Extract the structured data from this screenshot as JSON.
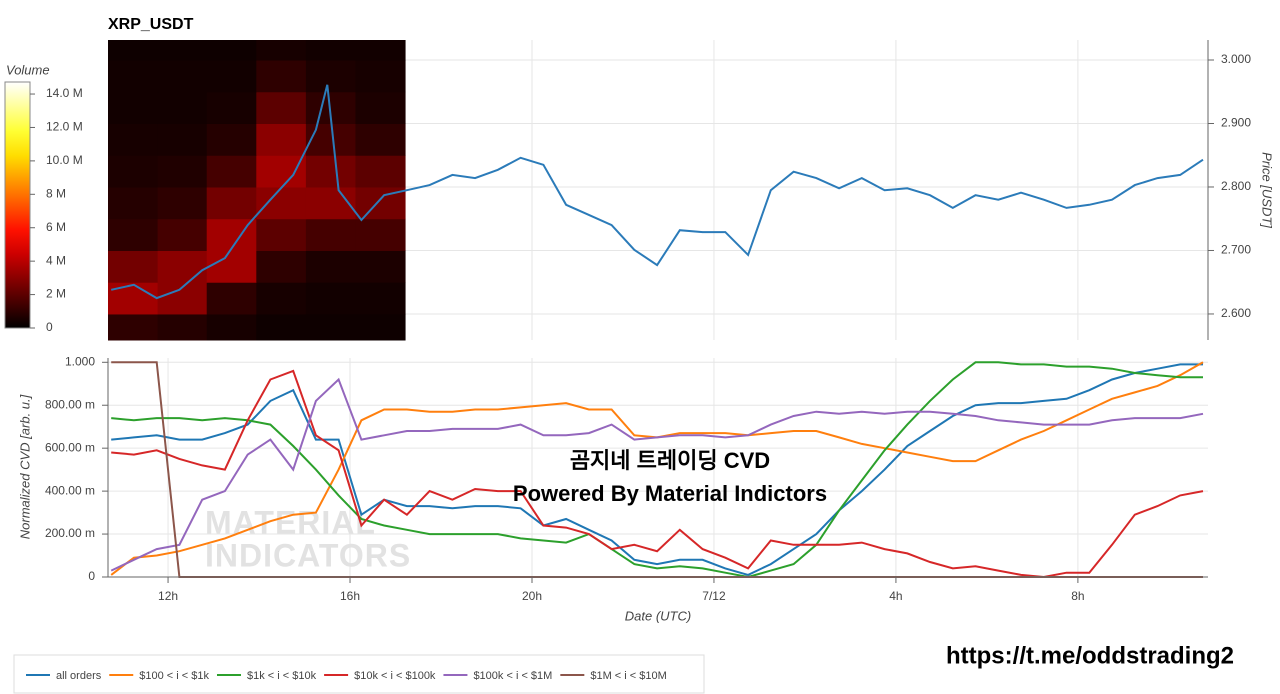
{
  "chart_data": [
    {
      "type": "line",
      "title": "XRP_USDT",
      "y2label": "Price [USDT]",
      "xlim": [
        10.68,
        34.86
      ],
      "x": [
        10.75,
        11.25,
        11.75,
        12.25,
        12.75,
        13.25,
        13.75,
        14.25,
        14.75,
        15.25,
        15.5,
        15.75,
        16.25,
        16.75,
        17.25,
        17.75,
        18.25,
        18.75,
        19.25,
        19.75,
        20.25,
        20.75,
        21.25,
        21.75,
        22.25,
        22.75,
        23.25,
        23.75,
        24.25,
        24.75,
        25.25,
        25.75,
        26.25,
        26.75,
        27.25,
        27.75,
        28.25,
        28.75,
        29.25,
        29.75,
        30.25,
        30.75,
        31.25,
        31.75,
        32.25,
        32.75,
        33.25,
        33.75,
        34.25,
        34.75
      ],
      "series": [
        {
          "color": "#2b7bb9",
          "axis": "y2",
          "values": [
            2.638,
            2.646,
            2.625,
            2.638,
            2.669,
            2.688,
            2.74,
            2.78,
            2.819,
            2.89,
            2.961,
            2.795,
            2.748,
            2.787,
            2.795,
            2.803,
            2.819,
            2.814,
            2.827,
            2.846,
            2.835,
            2.772,
            2.756,
            2.74,
            2.701,
            2.677,
            2.732,
            2.729,
            2.729,
            2.693,
            2.795,
            2.824,
            2.814,
            2.798,
            2.814,
            2.795,
            2.798,
            2.787,
            2.767,
            2.787,
            2.78,
            2.791,
            2.78,
            2.767,
            2.772,
            2.78,
            2.803,
            2.814,
            2.819,
            2.843
          ]
        }
      ],
      "y2lim": [
        2.559,
        3.0315
      ],
      "y2ticks": [
        {
          "value": 2.6,
          "label": "2.600"
        },
        {
          "value": 2.7,
          "label": "2.700"
        },
        {
          "value": 2.8,
          "label": "2.800"
        },
        {
          "value": 2.9,
          "label": "2.900"
        },
        {
          "value": 3.0,
          "label": "3.000"
        }
      ],
      "grid": true,
      "heatmap": {
        "label": "Volume",
        "colormap": "hot",
        "x_edges": [
          10.68,
          11.77,
          12.85,
          13.94,
          15.03,
          16.12,
          17.21
        ],
        "y_edges": [
          2.559,
          2.6,
          2.65,
          2.7,
          2.75,
          2.8,
          2.85,
          2.9,
          2.95,
          3.0,
          3.0315
        ],
        "values": [
          [
            1000000,
            800000,
            500000,
            300000,
            300000,
            300000
          ],
          [
            3500000,
            3000000,
            1000000,
            500000,
            400000,
            400000
          ],
          [
            2500000,
            3000000,
            3500000,
            1000000,
            600000,
            600000
          ],
          [
            1000000,
            1500000,
            3500000,
            2000000,
            1500000,
            1500000
          ],
          [
            800000,
            1000000,
            2500000,
            3000000,
            3000000,
            2500000
          ],
          [
            600000,
            700000,
            1500000,
            3500000,
            2500000,
            2000000
          ],
          [
            500000,
            500000,
            800000,
            3000000,
            1500000,
            1000000
          ],
          [
            400000,
            400000,
            500000,
            2000000,
            1000000,
            600000
          ],
          [
            400000,
            400000,
            400000,
            1000000,
            600000,
            500000
          ],
          [
            300000,
            300000,
            300000,
            500000,
            400000,
            400000
          ]
        ],
        "clim": [
          0,
          14720000
        ],
        "cticks": [
          0,
          {
            "value": 2000000,
            "label": "2 M"
          },
          {
            "value": 4000000,
            "label": "4 M"
          },
          {
            "value": 6000000,
            "label": "6 M"
          },
          {
            "value": 8000000,
            "label": "8 M"
          },
          {
            "value": 10000000,
            "label": "10.0 M"
          },
          {
            "value": 12000000,
            "label": "12.0 M"
          },
          {
            "value": 14000000,
            "label": "14.0 M"
          }
        ]
      }
    },
    {
      "type": "line",
      "xlabel": "Date (UTC)",
      "ylabel": "Normalized CVD [arb. u.]",
      "xlim": [
        10.68,
        34.86
      ],
      "xticks": [
        {
          "value": 12,
          "label": "12h"
        },
        {
          "value": 16,
          "label": "16h"
        },
        {
          "value": 20,
          "label": "20h"
        },
        {
          "value": 24,
          "label": "7/12"
        },
        {
          "value": 28,
          "label": "4h"
        },
        {
          "value": 32,
          "label": "8h"
        }
      ],
      "ylim": [
        0,
        1.02
      ],
      "yticks": [
        0,
        {
          "value": 0.2,
          "label": "200.00 m"
        },
        {
          "value": 0.4,
          "label": "400.00 m"
        },
        {
          "value": 0.6,
          "label": "600.00 m"
        },
        {
          "value": 0.8,
          "label": "800.00 m"
        },
        {
          "value": 1.0,
          "label": "1.000"
        }
      ],
      "grid": true,
      "x": [
        10.75,
        11.25,
        11.75,
        12.25,
        12.75,
        13.25,
        13.75,
        14.25,
        14.75,
        15.25,
        15.75,
        16.25,
        16.75,
        17.25,
        17.75,
        18.25,
        18.75,
        19.25,
        19.75,
        20.25,
        20.75,
        21.25,
        21.75,
        22.25,
        22.75,
        23.25,
        23.75,
        24.25,
        24.75,
        25.25,
        25.75,
        26.25,
        26.75,
        27.25,
        27.75,
        28.25,
        28.75,
        29.25,
        29.75,
        30.25,
        30.75,
        31.25,
        31.75,
        32.25,
        32.75,
        33.25,
        33.75,
        34.25,
        34.75
      ],
      "series": [
        {
          "name": "all orders",
          "color": "#1f77b4",
          "values": [
            0.64,
            0.65,
            0.66,
            0.64,
            0.64,
            0.67,
            0.71,
            0.82,
            0.87,
            0.64,
            0.64,
            0.29,
            0.36,
            0.33,
            0.33,
            0.32,
            0.33,
            0.33,
            0.32,
            0.24,
            0.27,
            0.22,
            0.17,
            0.08,
            0.06,
            0.08,
            0.08,
            0.04,
            0.01,
            0.06,
            0.13,
            0.2,
            0.31,
            0.4,
            0.5,
            0.61,
            0.68,
            0.75,
            0.8,
            0.81,
            0.81,
            0.82,
            0.83,
            0.87,
            0.92,
            0.95,
            0.97,
            0.99,
            0.99
          ]
        },
        {
          "name": "$100 < i < $1k",
          "color": "#ff7f0e",
          "values": [
            0.01,
            0.09,
            0.1,
            0.12,
            0.15,
            0.18,
            0.22,
            0.26,
            0.29,
            0.3,
            0.5,
            0.73,
            0.78,
            0.78,
            0.77,
            0.77,
            0.78,
            0.78,
            0.79,
            0.8,
            0.81,
            0.78,
            0.78,
            0.66,
            0.65,
            0.67,
            0.67,
            0.67,
            0.66,
            0.67,
            0.68,
            0.68,
            0.65,
            0.62,
            0.6,
            0.58,
            0.56,
            0.54,
            0.54,
            0.59,
            0.64,
            0.68,
            0.73,
            0.78,
            0.83,
            0.86,
            0.89,
            0.94,
            1.0
          ]
        },
        {
          "name": "$1k < i < $10k",
          "color": "#2ca02c",
          "values": [
            0.74,
            0.73,
            0.74,
            0.74,
            0.73,
            0.74,
            0.73,
            0.71,
            0.61,
            0.5,
            0.38,
            0.27,
            0.24,
            0.22,
            0.2,
            0.2,
            0.2,
            0.2,
            0.18,
            0.17,
            0.16,
            0.2,
            0.13,
            0.06,
            0.04,
            0.05,
            0.04,
            0.02,
            0.0,
            0.03,
            0.06,
            0.15,
            0.31,
            0.45,
            0.59,
            0.71,
            0.82,
            0.92,
            1.0,
            1.0,
            0.99,
            0.99,
            0.98,
            0.98,
            0.97,
            0.95,
            0.94,
            0.93,
            0.93
          ]
        },
        {
          "name": "$10k < i < $100k",
          "color": "#d62728",
          "values": [
            0.58,
            0.57,
            0.59,
            0.55,
            0.52,
            0.5,
            0.73,
            0.92,
            0.96,
            0.66,
            0.59,
            0.24,
            0.36,
            0.29,
            0.4,
            0.36,
            0.41,
            0.4,
            0.4,
            0.24,
            0.23,
            0.2,
            0.13,
            0.15,
            0.12,
            0.22,
            0.13,
            0.09,
            0.04,
            0.17,
            0.15,
            0.15,
            0.15,
            0.16,
            0.13,
            0.11,
            0.07,
            0.04,
            0.05,
            0.03,
            0.01,
            0.0,
            0.02,
            0.02,
            0.15,
            0.29,
            0.33,
            0.38,
            0.4
          ]
        },
        {
          "name": "$100k < i < $1M",
          "color": "#9467bd",
          "values": [
            0.03,
            0.08,
            0.13,
            0.15,
            0.36,
            0.4,
            0.57,
            0.64,
            0.5,
            0.82,
            0.92,
            0.64,
            0.66,
            0.68,
            0.68,
            0.69,
            0.69,
            0.69,
            0.71,
            0.66,
            0.66,
            0.67,
            0.71,
            0.64,
            0.65,
            0.66,
            0.66,
            0.65,
            0.66,
            0.71,
            0.75,
            0.77,
            0.76,
            0.77,
            0.76,
            0.77,
            0.77,
            0.76,
            0.75,
            0.73,
            0.72,
            0.71,
            0.71,
            0.71,
            0.73,
            0.74,
            0.74,
            0.74,
            0.76
          ]
        },
        {
          "name": "$1M < i < $10M",
          "color": "#8c564b",
          "values": [
            1.0,
            1.0,
            1.0,
            0.0,
            0.0,
            0.0,
            0.0,
            0.0,
            0.0,
            0.0,
            0.0,
            0.0,
            0.0,
            0.0,
            0.0,
            0.0,
            0.0,
            0.0,
            0.0,
            0.0,
            0.0,
            0.0,
            0.0,
            0.0,
            0.0,
            0.0,
            0.0,
            0.0,
            0.0,
            0.0,
            0.0,
            0.0,
            0.0,
            0.0,
            0.0,
            0.0,
            0.0,
            0.0,
            0.0,
            0.0,
            0.0,
            0.0,
            0.0,
            0.0,
            0.0,
            0.0,
            0.0,
            0.0,
            0.0
          ]
        }
      ],
      "annotations": [
        "곰지네 트레이딩 CVD",
        "Powered By Material Indictors"
      ],
      "watermark": [
        "MATERIAL",
        "INDICATORS"
      ]
    }
  ],
  "link": "https://t.me/oddstrading2"
}
